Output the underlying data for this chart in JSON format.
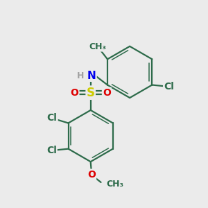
{
  "bg_color": "#ebebeb",
  "bond_color": "#2d6b4a",
  "bond_width": 1.6,
  "atom_colors": {
    "H": "#a0a0a0",
    "N": "#0000ee",
    "S": "#cccc00",
    "O": "#dd0000",
    "Cl": "#2d6b4a"
  },
  "font_size": 10,
  "fig_size": [
    3.0,
    3.0
  ],
  "dpi": 100,
  "xlim": [
    0,
    10
  ],
  "ylim": [
    0,
    10
  ]
}
